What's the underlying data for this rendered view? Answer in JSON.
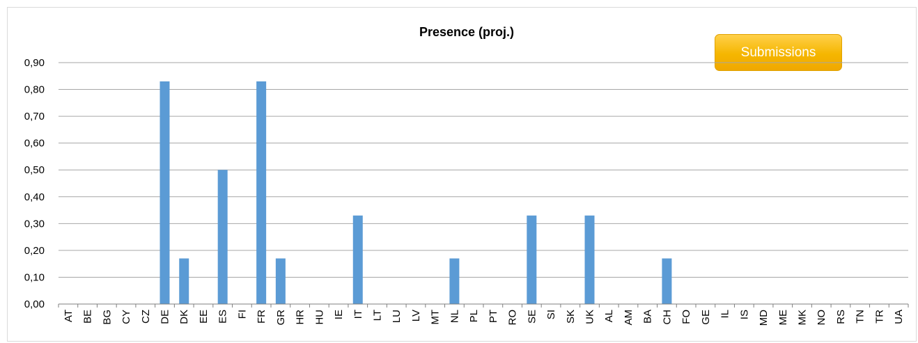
{
  "chart_data": {
    "type": "bar",
    "title": "Presence (proj.)",
    "categories": [
      "AT",
      "BE",
      "BG",
      "CY",
      "CZ",
      "DE",
      "DK",
      "EE",
      "ES",
      "FI",
      "FR",
      "GR",
      "HR",
      "HU",
      "IE",
      "IT",
      "LT",
      "LU",
      "LV",
      "MT",
      "NL",
      "PL",
      "PT",
      "RO",
      "SE",
      "SI",
      "SK",
      "UK",
      "AL",
      "AM",
      "BA",
      "CH",
      "FO",
      "GE",
      "IL",
      "IS",
      "MD",
      "ME",
      "MK",
      "NO",
      "RS",
      "TN",
      "TR",
      "UA"
    ],
    "values": [
      0,
      0,
      0,
      0,
      0,
      0.83,
      0.17,
      0,
      0.5,
      0,
      0.83,
      0.17,
      0,
      0,
      0,
      0.33,
      0,
      0,
      0,
      0,
      0.17,
      0,
      0,
      0,
      0.33,
      0,
      0,
      0.33,
      0,
      0,
      0,
      0.17,
      0,
      0,
      0,
      0,
      0,
      0,
      0,
      0,
      0,
      0,
      0,
      0
    ],
    "ylim": [
      0,
      0.9
    ],
    "yticks": [
      "0,00",
      "0,10",
      "0,20",
      "0,30",
      "0,40",
      "0,50",
      "0,60",
      "0,70",
      "0,80",
      "0,90"
    ],
    "xlabel": "",
    "ylabel": "",
    "grid": true,
    "bar_color": "#5b9bd5"
  },
  "button": {
    "label": "Submissions"
  }
}
